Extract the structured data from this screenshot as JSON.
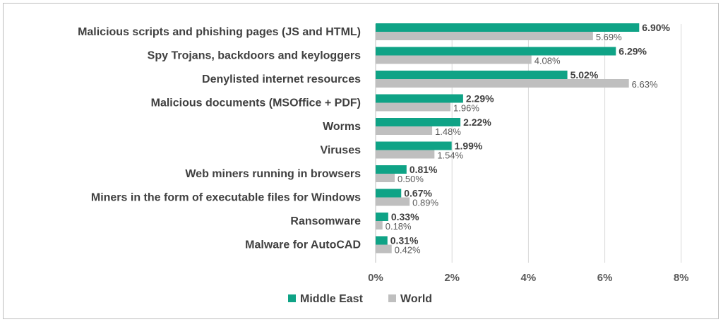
{
  "chart_data": {
    "type": "bar",
    "orientation": "horizontal",
    "categories": [
      "Malicious scripts and phishing pages (JS and HTML)",
      "Spy Trojans, backdoors and keyloggers",
      "Denylisted internet resources",
      "Malicious documents (MSOffice + PDF)",
      "Worms",
      "Viruses",
      "Web miners running in browsers",
      "Miners in the form of executable files for Windows",
      "Ransomware",
      "Malware for AutoCAD"
    ],
    "series": [
      {
        "name": "Middle East",
        "color": "#0fa386",
        "values": [
          6.9,
          6.29,
          5.02,
          2.29,
          2.22,
          1.99,
          0.81,
          0.67,
          0.33,
          0.31
        ],
        "labels": [
          "6.90%",
          "6.29%",
          "5.02%",
          "2.29%",
          "2.22%",
          "1.99%",
          "0.81%",
          "0.67%",
          "0.33%",
          "0.31%"
        ]
      },
      {
        "name": "World",
        "color": "#bfbfbf",
        "values": [
          5.69,
          4.08,
          6.63,
          1.96,
          1.48,
          1.54,
          0.5,
          0.89,
          0.18,
          0.42
        ],
        "labels": [
          "5.69%",
          "4.08%",
          "6.63%",
          "1.96%",
          "1.48%",
          "1.54%",
          "0.50%",
          "0.89%",
          "0.18%",
          "0.42%"
        ]
      }
    ],
    "xlim": [
      0,
      8
    ],
    "xticks": [
      0,
      2,
      4,
      6,
      8
    ],
    "xtick_labels": [
      "0%",
      "2%",
      "4%",
      "6%",
      "8%"
    ],
    "grid": "vertical",
    "legend_position": "bottom-center"
  }
}
